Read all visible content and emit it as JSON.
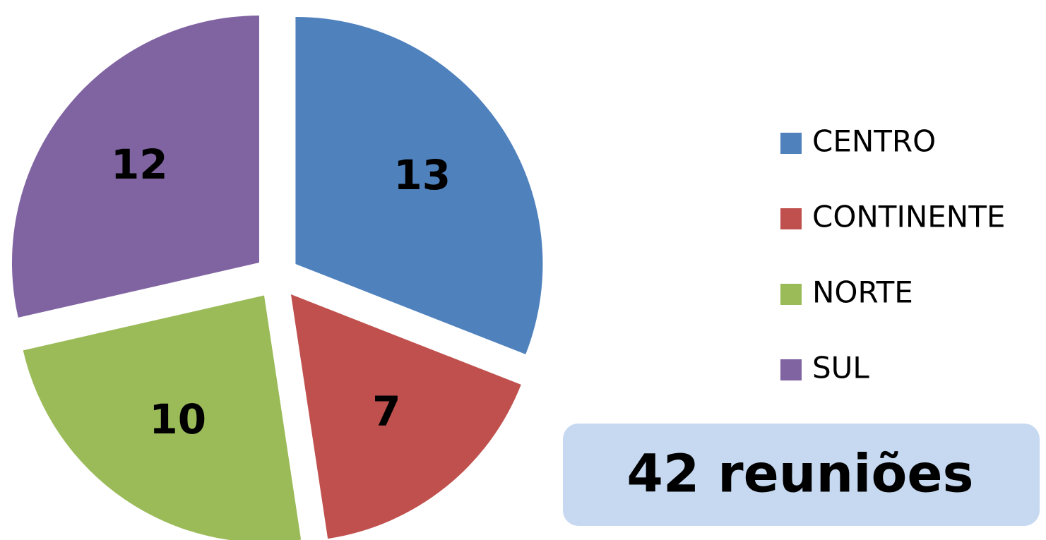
{
  "chart_data": {
    "type": "pie",
    "categories": [
      "CENTRO",
      "CONTINENTE",
      "NORTE",
      "SUL"
    ],
    "values": [
      13,
      7,
      10,
      12
    ],
    "colors": [
      "#4f81bd",
      "#c0504d",
      "#9bbb59",
      "#8064a2"
    ],
    "legend": "right",
    "annotation": "42 reuniões"
  }
}
